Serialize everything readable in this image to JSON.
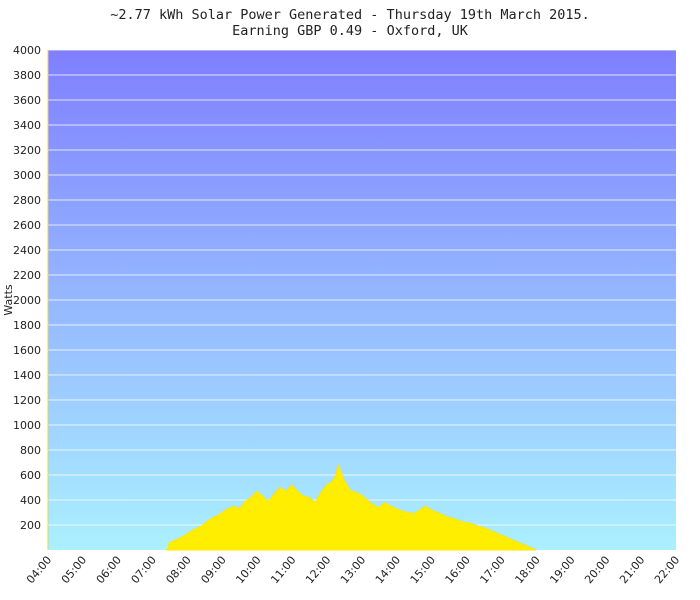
{
  "chart_data": {
    "type": "area",
    "title": "~2.77 kWh Solar Power Generated - Thursday 19th March 2015.",
    "subtitle": "Earning GBP 0.49 - Oxford, UK",
    "xlabel": "",
    "ylabel": "Watts",
    "ylim": [
      0,
      4000
    ],
    "xlim": [
      "04:00",
      "22:00"
    ],
    "y_ticks": [
      "200",
      "400",
      "600",
      "800",
      "1000",
      "1200",
      "1400",
      "1600",
      "1800",
      "2000",
      "2200",
      "2400",
      "2600",
      "2800",
      "3000",
      "3200",
      "3400",
      "3600",
      "3800",
      "4000"
    ],
    "x_ticks": [
      "04:00",
      "05:00",
      "06:00",
      "07:00",
      "08:00",
      "09:00",
      "10:00",
      "11:00",
      "12:00",
      "13:00",
      "14:00",
      "15:00",
      "16:00",
      "17:00",
      "18:00",
      "19:00",
      "20:00",
      "21:00",
      "22:00"
    ],
    "grid": true,
    "colors": {
      "fill": "#ffee00",
      "edge": "#ffe600",
      "bg_top": "#7f7fff",
      "bg_bottom": "#aaf0ff",
      "grid": "#ffffff"
    },
    "series": [
      {
        "x": [
          "07:25",
          "07:30",
          "07:40",
          "07:50",
          "08:00",
          "08:10",
          "08:20",
          "08:30",
          "08:40",
          "08:50",
          "09:00",
          "09:10",
          "09:20",
          "09:30",
          "09:40",
          "09:50",
          "10:00",
          "10:10",
          "10:20",
          "10:30",
          "10:40",
          "10:50",
          "11:00",
          "11:10",
          "11:20",
          "11:30",
          "11:40",
          "11:50",
          "12:00",
          "12:10",
          "12:15",
          "12:20",
          "12:25",
          "12:30",
          "12:40",
          "12:50",
          "13:00",
          "13:10",
          "13:20",
          "13:30",
          "13:40",
          "13:50",
          "14:00",
          "14:10",
          "14:20",
          "14:30",
          "14:40",
          "14:50",
          "15:00",
          "15:10",
          "15:20",
          "15:30",
          "15:40",
          "15:50",
          "16:00",
          "16:10",
          "16:20",
          "16:30",
          "16:40",
          "16:50",
          "17:00",
          "17:10",
          "17:20",
          "17:30",
          "17:40",
          "17:50",
          "17:55",
          "18:00"
        ],
        "values": [
          0,
          60,
          80,
          100,
          130,
          160,
          180,
          210,
          250,
          270,
          300,
          330,
          350,
          330,
          390,
          420,
          470,
          430,
          390,
          450,
          500,
          470,
          520,
          470,
          430,
          420,
          380,
          460,
          520,
          550,
          590,
          680,
          620,
          560,
          480,
          460,
          440,
          400,
          360,
          340,
          380,
          350,
          330,
          310,
          300,
          290,
          320,
          350,
          320,
          300,
          280,
          260,
          250,
          230,
          220,
          210,
          190,
          180,
          160,
          140,
          120,
          100,
          80,
          60,
          40,
          20,
          10,
          0
        ]
      }
    ]
  }
}
